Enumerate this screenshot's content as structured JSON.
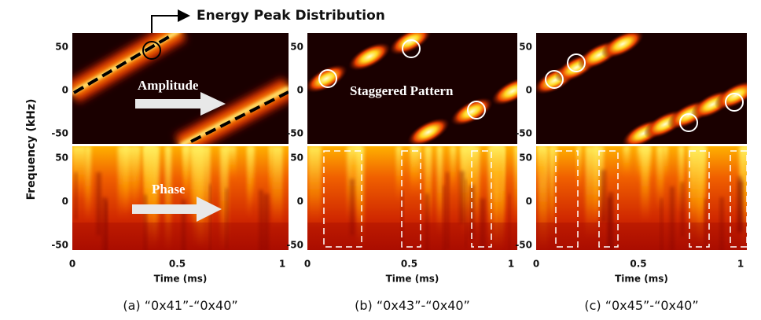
{
  "y_axis_label": "Frequency (kHz)",
  "annotation": "Energy Peak Distribution",
  "panels": [
    {
      "label": "(a)",
      "expr": "“0x41”-“0x40”",
      "x_label": "Time (ms)",
      "x_ticks": [
        "0",
        "0.5",
        "1"
      ],
      "top_y_ticks": [
        "50",
        "0",
        "-50"
      ],
      "bottom_y_ticks": [
        "50",
        "0",
        "-50"
      ],
      "top_text": "Amplitude",
      "bottom_text": "Phase"
    },
    {
      "label": "(b)",
      "expr": "“0x43”-“0x40”",
      "x_label": "Time (ms)",
      "x_ticks": [
        "0",
        "0.5",
        "1"
      ],
      "top_y_ticks": [
        "50",
        "0",
        "-50"
      ],
      "bottom_y_ticks": [
        "50",
        "0",
        "-50"
      ],
      "top_text": "Staggered Pattern"
    },
    {
      "label": "(c)",
      "expr": "“0x45”-“0x40”",
      "x_label": "Time (ms)",
      "x_ticks": [
        "0",
        "0.5",
        "1"
      ],
      "top_y_ticks": [
        "50",
        "0",
        "-50"
      ],
      "bottom_y_ticks": [
        "50",
        "0",
        "-50"
      ]
    }
  ]
}
